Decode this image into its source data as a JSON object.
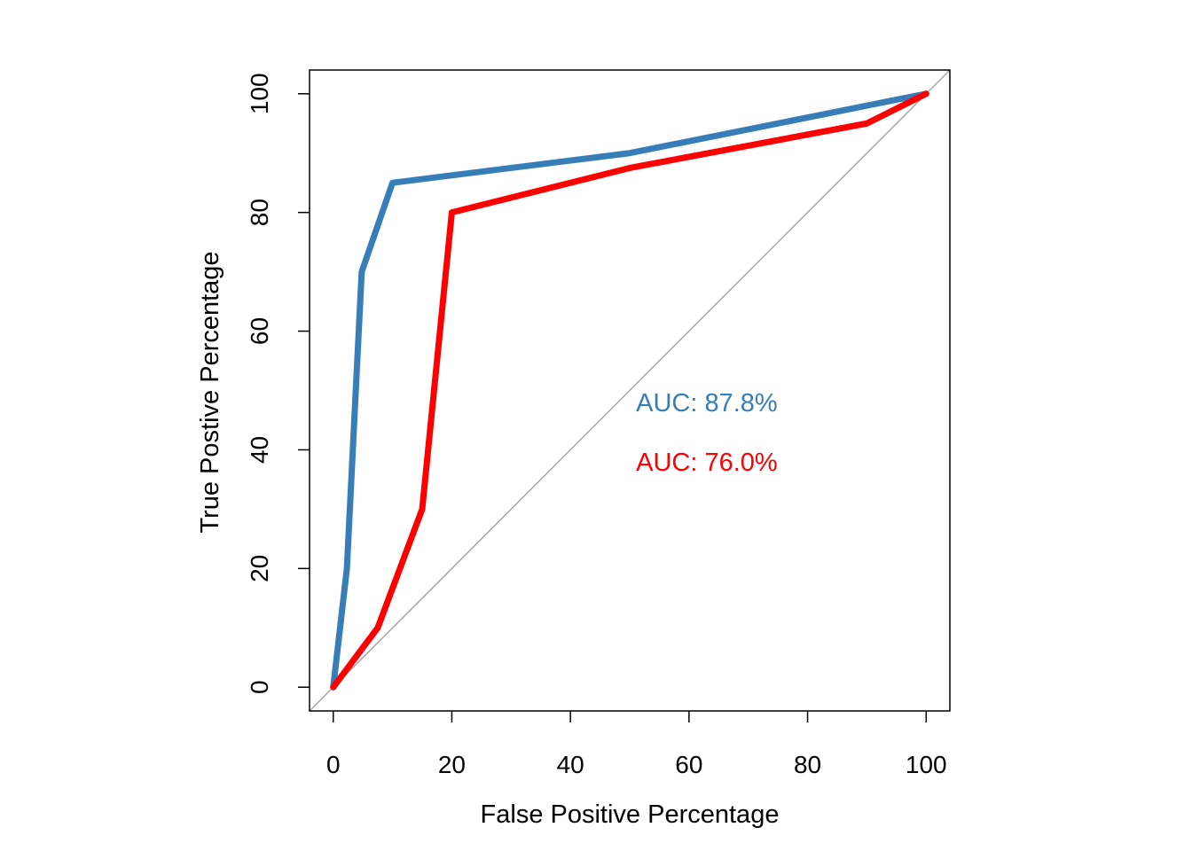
{
  "chart_data": {
    "type": "line",
    "title": "",
    "xlabel": "False Positive Percentage",
    "ylabel": "True Postive Percentage",
    "xlim": [
      -4,
      104
    ],
    "ylim": [
      -4,
      104
    ],
    "x_ticks": [
      0,
      20,
      40,
      60,
      80,
      100
    ],
    "y_ticks": [
      0,
      20,
      40,
      60,
      80,
      100
    ],
    "x_tick_labels": [
      "0",
      "20",
      "40",
      "60",
      "80",
      "100"
    ],
    "y_tick_labels": [
      "0",
      "20",
      "40",
      "60",
      "80",
      "100"
    ],
    "grid": false,
    "legend": "none",
    "reference_line": {
      "x": [
        -4,
        104
      ],
      "y": [
        -4,
        104
      ],
      "color": "#a6a6a6"
    },
    "series": [
      {
        "color": "#377eb8",
        "x": [
          0,
          2.3,
          4.8,
          10,
          50,
          100
        ],
        "y": [
          0,
          20,
          70,
          85,
          90,
          100
        ],
        "annotation": {
          "text": "AUC: 87.8%",
          "x": 63,
          "y": 48
        }
      },
      {
        "color": "#ff0000",
        "x": [
          0,
          7.5,
          15,
          20,
          50,
          90,
          100
        ],
        "y": [
          0,
          10,
          30,
          80,
          87.5,
          95,
          100
        ],
        "annotation": {
          "text": "AUC: 76.0%",
          "x": 63,
          "y": 38
        }
      }
    ]
  }
}
